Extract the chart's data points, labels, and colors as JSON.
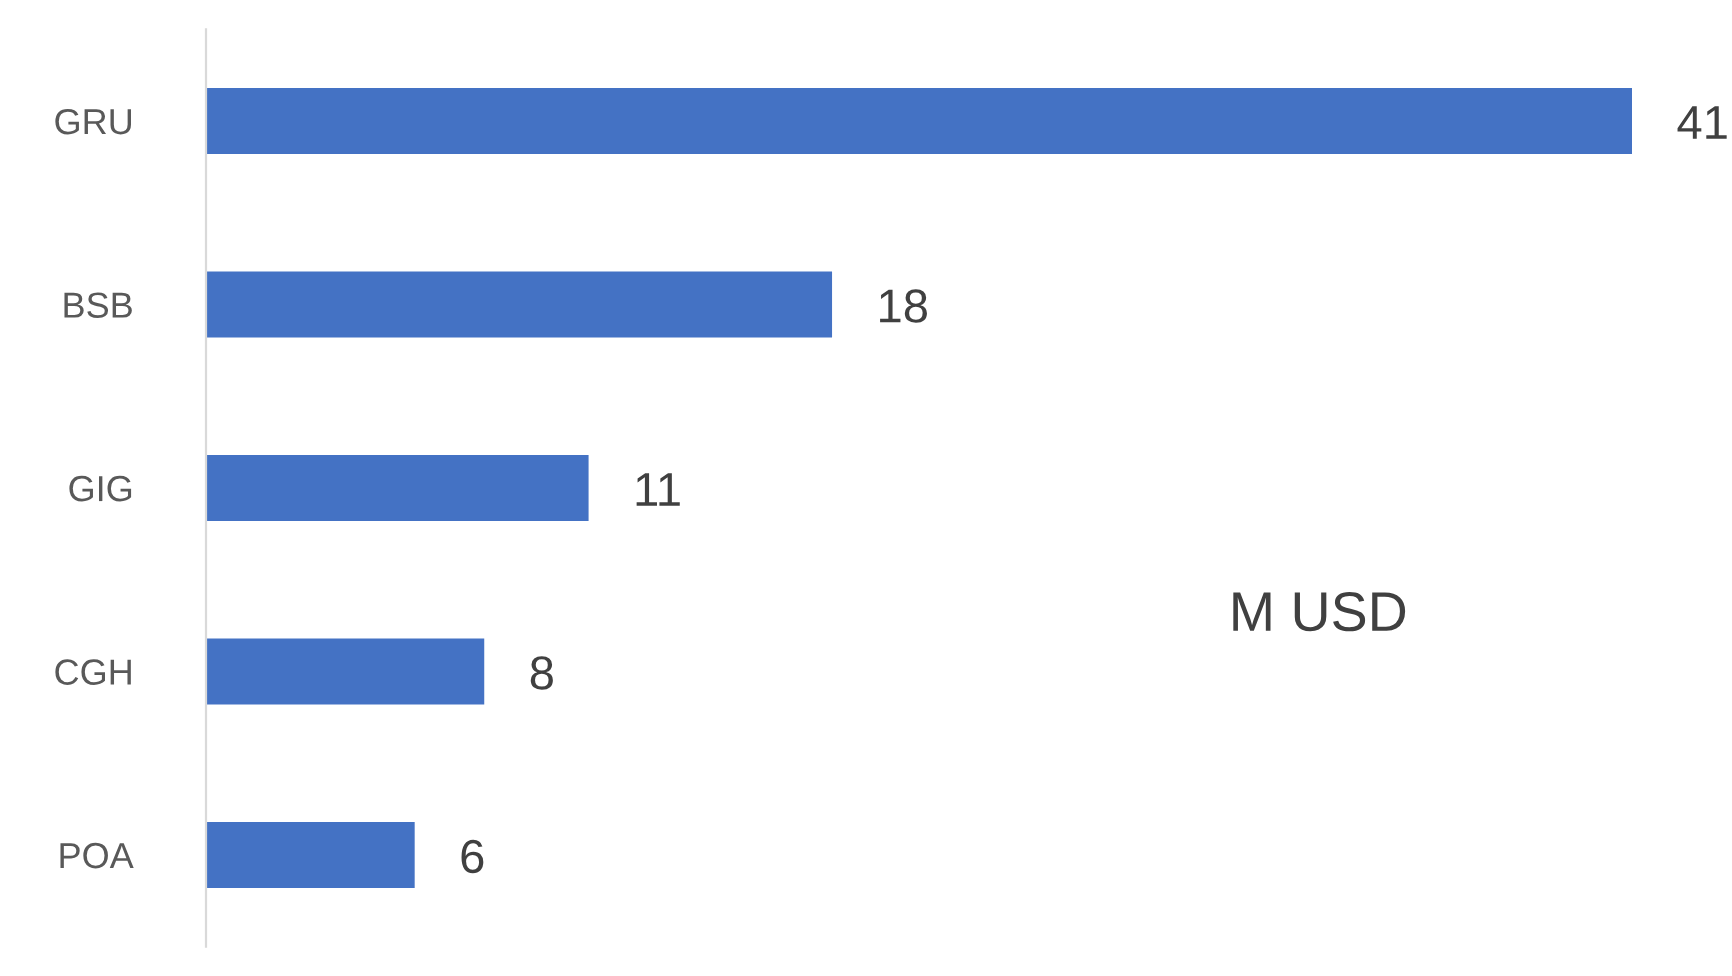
{
  "chart_data": {
    "type": "bar",
    "orientation": "horizontal",
    "categories": [
      "GRU",
      "BSB",
      "GIG",
      "CGH",
      "POA"
    ],
    "values": [
      41,
      18,
      11,
      8,
      6
    ],
    "color": "#4472c4",
    "data_labels": true,
    "tick_labels": "y",
    "grid": false,
    "legend": false,
    "annotations": [
      "M USD"
    ]
  }
}
